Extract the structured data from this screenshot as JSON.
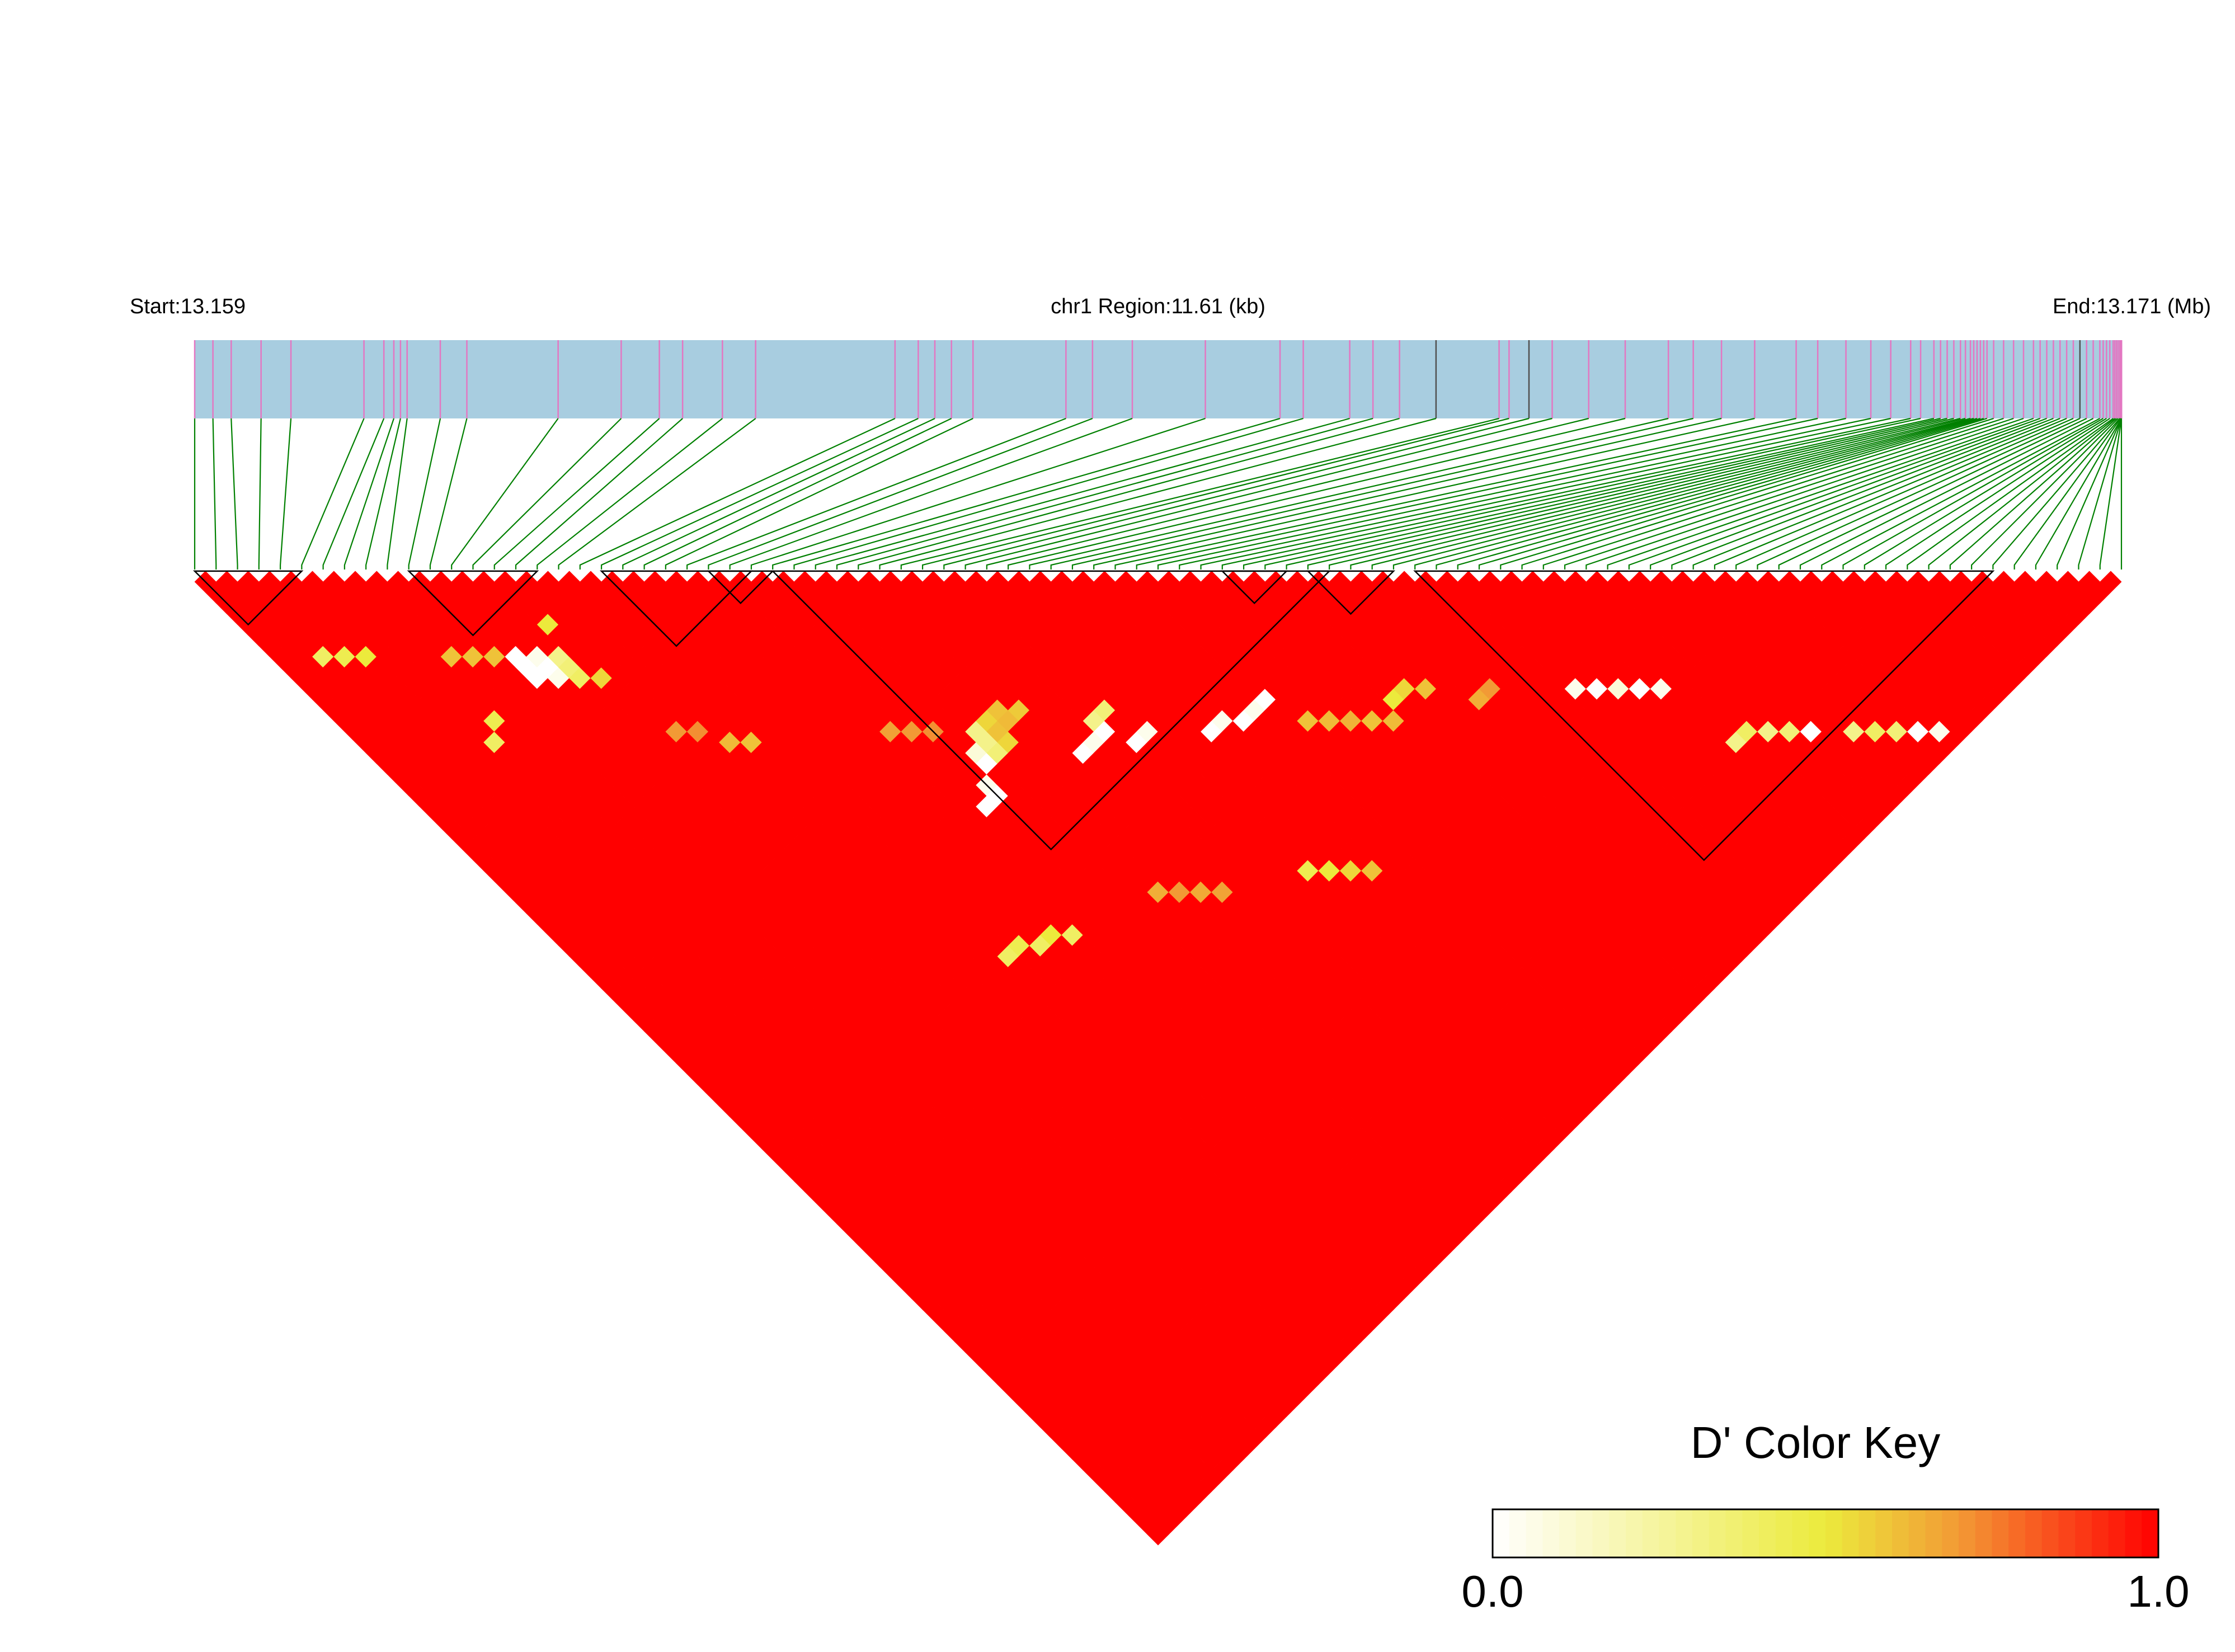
{
  "header": {
    "start_label": "Start:13.159",
    "region_label": "chr1 Region:11.61 (kb)",
    "end_label": "End:13.171 (Mb)"
  },
  "legend": {
    "title": "D' Color Key",
    "min_label": "0.0",
    "max_label": "1.0",
    "colors": [
      "#ffffff",
      "#f2ea4a",
      "#f29a35",
      "#ff0000"
    ]
  },
  "colors": {
    "gene_bar": "#a8cde0",
    "snp_tick": "#e377c2",
    "snp_tick_dark": "#505050",
    "connector": "#008000",
    "high_ld": "#ff0000",
    "block_outline": "#000000"
  },
  "chart_data": {
    "type": "heatmap",
    "title": "",
    "xlabel": "",
    "ylabel": "",
    "value_label": "D'",
    "range_kb": [
      0,
      11.61
    ],
    "start_mb": 13.159,
    "end_mb": 13.171,
    "snp_count": 91,
    "snp_positions_kb": [
      0.0,
      0.11,
      0.22,
      0.4,
      0.58,
      1.02,
      1.14,
      1.2,
      1.24,
      1.28,
      1.48,
      1.64,
      2.19,
      2.57,
      2.8,
      2.94,
      3.18,
      3.38,
      4.22,
      4.36,
      4.46,
      4.56,
      4.69,
      5.25,
      5.41,
      5.65,
      6.09,
      6.54,
      6.68,
      6.96,
      7.1,
      7.26,
      7.48,
      7.86,
      7.92,
      8.04,
      8.18,
      8.4,
      8.62,
      8.88,
      9.03,
      9.2,
      9.4,
      9.65,
      9.78,
      9.95,
      10.1,
      10.22,
      10.34,
      10.4,
      10.48,
      10.52,
      10.56,
      10.6,
      10.64,
      10.67,
      10.7,
      10.72,
      10.74,
      10.76,
      10.78,
      10.8,
      10.84,
      10.9,
      10.96,
      11.02,
      11.08,
      11.12,
      11.16,
      11.2,
      11.24,
      11.28,
      11.32,
      11.36,
      11.4,
      11.44,
      11.48,
      11.5,
      11.52,
      11.54,
      11.56,
      11.57,
      11.58,
      11.59,
      11.6,
      11.605,
      11.61,
      11.61,
      11.61,
      11.61,
      11.61
    ],
    "default_dprime": 1.0,
    "haplotype_blocks": [
      [
        0,
        5
      ],
      [
        10,
        16
      ],
      [
        19,
        26
      ],
      [
        24,
        27
      ],
      [
        27,
        53
      ],
      [
        48,
        51
      ],
      [
        52,
        56
      ],
      [
        57,
        84
      ]
    ],
    "low_dprime_cells": [
      [
        11,
        19,
        0.0
      ],
      [
        11,
        20,
        0.0
      ],
      [
        11,
        21,
        0.0
      ],
      [
        12,
        20,
        0.05
      ],
      [
        12,
        21,
        0.0
      ],
      [
        12,
        22,
        0.05
      ],
      [
        13,
        21,
        0.3
      ],
      [
        13,
        22,
        0.35
      ],
      [
        13,
        23,
        0.4
      ],
      [
        14,
        19,
        0.5
      ],
      [
        14,
        24,
        0.55
      ],
      [
        6,
        22,
        0.4
      ],
      [
        7,
        21,
        0.45
      ],
      [
        8,
        16,
        0.6
      ],
      [
        9,
        17,
        0.6
      ],
      [
        10,
        18,
        0.6
      ],
      [
        26,
        48,
        0.0
      ],
      [
        27,
        47,
        0.05
      ],
      [
        27,
        48,
        0.0
      ],
      [
        28,
        45,
        0.1
      ],
      [
        28,
        46,
        0.0
      ],
      [
        29,
        44,
        0.3
      ],
      [
        29,
        45,
        0.3
      ],
      [
        29,
        46,
        0.35
      ],
      [
        30,
        44,
        0.55
      ],
      [
        30,
        45,
        0.6
      ],
      [
        30,
        46,
        0.55
      ],
      [
        31,
        44,
        0.6
      ],
      [
        31,
        45,
        0.62
      ],
      [
        32,
        45,
        0.58
      ],
      [
        33,
        50,
        0.0
      ],
      [
        34,
        50,
        0.05
      ],
      [
        35,
        50,
        0.0
      ],
      [
        36,
        52,
        0.0
      ],
      [
        37,
        52,
        0.05
      ],
      [
        35,
        49,
        0.3
      ],
      [
        36,
        49,
        0.35
      ],
      [
        40,
        55,
        0.0
      ],
      [
        41,
        55,
        0.05
      ],
      [
        42,
        56,
        0.0
      ],
      [
        43,
        56,
        0.05
      ],
      [
        44,
        56,
        0.0
      ],
      [
        20,
        56,
        0.4
      ],
      [
        21,
        56,
        0.45
      ],
      [
        22,
        57,
        0.4
      ],
      [
        23,
        57,
        0.5
      ],
      [
        24,
        58,
        0.4
      ],
      [
        38,
        66,
        0.45
      ],
      [
        39,
        67,
        0.5
      ],
      [
        40,
        68,
        0.55
      ],
      [
        41,
        69,
        0.6
      ],
      [
        59,
        70,
        0.05
      ],
      [
        60,
        71,
        0.0
      ],
      [
        61,
        72,
        0.1
      ],
      [
        62,
        73,
        0.0
      ],
      [
        63,
        74,
        0.05
      ],
      [
        64,
        80,
        0.3
      ],
      [
        65,
        80,
        0.4
      ],
      [
        66,
        81,
        0.3
      ],
      [
        67,
        82,
        0.35
      ],
      [
        68,
        83,
        0.0
      ],
      [
        50,
        62,
        0.5
      ],
      [
        51,
        62,
        0.55
      ],
      [
        52,
        63,
        0.6
      ],
      [
        54,
        66,
        0.65
      ],
      [
        55,
        66,
        0.7
      ],
      [
        45,
        59,
        0.6
      ],
      [
        46,
        60,
        0.62
      ],
      [
        47,
        61,
        0.64
      ],
      [
        48,
        62,
        0.6
      ],
      [
        49,
        63,
        0.62
      ],
      [
        30,
        60,
        0.65
      ],
      [
        31,
        61,
        0.7
      ],
      [
        32,
        62,
        0.66
      ],
      [
        33,
        63,
        0.68
      ],
      [
        70,
        85,
        0.3
      ],
      [
        71,
        86,
        0.4
      ],
      [
        72,
        87,
        0.35
      ],
      [
        73,
        88,
        0.0
      ],
      [
        74,
        89,
        0.05
      ],
      [
        2,
        10,
        0.4
      ],
      [
        3,
        11,
        0.45
      ],
      [
        4,
        12,
        0.5
      ],
      [
        15,
        30,
        0.7
      ],
      [
        16,
        31,
        0.72
      ],
      [
        17,
        33,
        0.62
      ],
      [
        18,
        34,
        0.6
      ],
      [
        25,
        40,
        0.68
      ],
      [
        26,
        41,
        0.7
      ],
      [
        27,
        42,
        0.72
      ]
    ]
  }
}
